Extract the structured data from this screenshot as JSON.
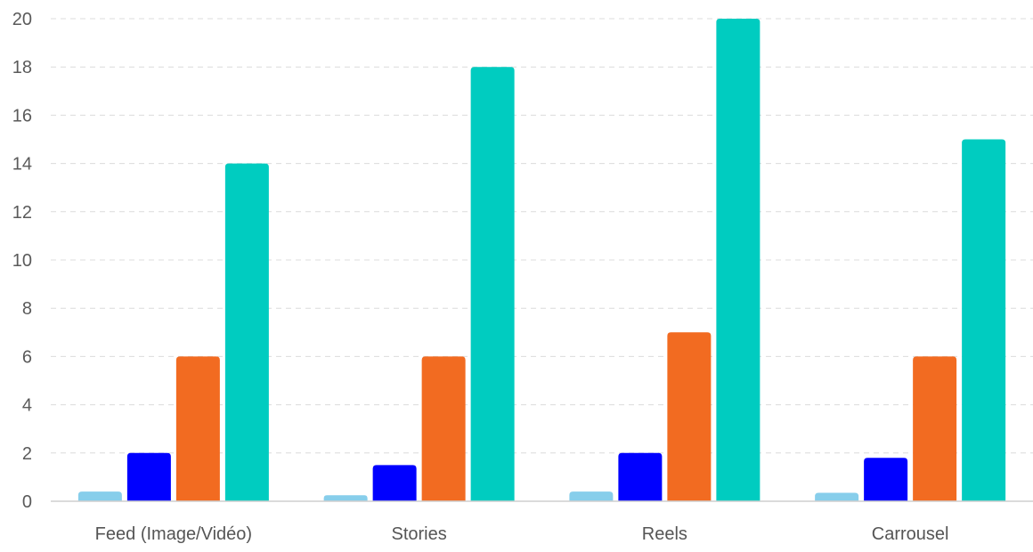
{
  "chart_data": {
    "type": "bar",
    "title": "",
    "xlabel": "",
    "ylabel": "",
    "ylim": [
      0,
      20
    ],
    "yticks": [
      "0",
      "2",
      "4",
      "6",
      "8",
      "10",
      "12",
      "14",
      "16",
      "18",
      "20"
    ],
    "grid": true,
    "legend": "none",
    "categories": [
      "Feed (Image/Vidéo)",
      "Stories",
      "Reels",
      "Carrousel"
    ],
    "series": [
      {
        "color": "#87ceeb",
        "values": [
          0.4,
          0.25,
          0.4,
          0.35
        ]
      },
      {
        "color": "#0000ff",
        "values": [
          2,
          1.5,
          2,
          1.8
        ]
      },
      {
        "color": "#f26b21",
        "values": [
          6,
          6,
          7,
          6
        ]
      },
      {
        "color": "#00ccc0",
        "values": [
          14,
          18,
          20,
          15
        ]
      }
    ]
  }
}
